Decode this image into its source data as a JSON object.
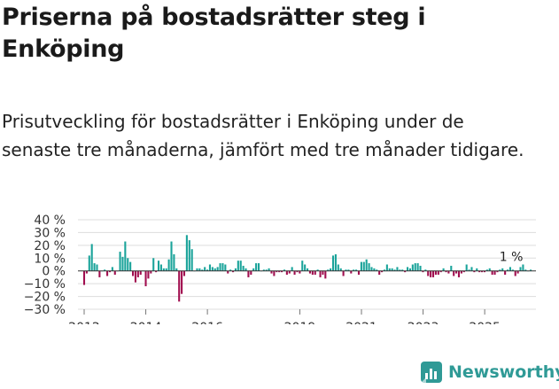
{
  "title": "Priserna på bostadsrätter steg i Enköping",
  "subtitle": "Prisutveckling för bostadsrätter i Enköping under de senaste tre månaderna, jämfört med tre månader tidigare.",
  "brand": {
    "name": "Newsworthy",
    "icon": "newsworthy-logo-icon"
  },
  "colors": {
    "positive": "#1aa39a",
    "negative": "#a10e4f",
    "grid": "#dddddd",
    "text": "#333333",
    "brand": "#2f9a96"
  },
  "chart_data": {
    "type": "bar",
    "title": "Priserna på bostadsrätter steg i Enköping",
    "xlabel": "",
    "ylabel": "",
    "ylim": [
      -30,
      40
    ],
    "yticks": [
      -30,
      -20,
      -10,
      0,
      10,
      20,
      30,
      40
    ],
    "ytick_labels": [
      "−30 %",
      "−20 %",
      "−10 %",
      "0 %",
      "10 %",
      "20 %",
      "30 %",
      "40 %"
    ],
    "xticks": [
      2012,
      2014,
      2016,
      2019,
      2021,
      2023,
      2025
    ],
    "x_start": 2012.0,
    "x_step": 0.0833,
    "grid": true,
    "annotation": {
      "label": "1 %",
      "value": 1
    },
    "values": [
      -11,
      -2,
      12,
      21,
      6,
      5,
      -5,
      0,
      1,
      -4,
      -1,
      3,
      -3,
      0,
      15,
      11,
      23,
      10,
      7,
      -4,
      -9,
      -5,
      -3,
      0,
      -12,
      -6,
      -2,
      10,
      -1,
      8,
      5,
      2,
      2,
      9,
      23,
      13,
      2,
      -24,
      -18,
      -4,
      28,
      24,
      17,
      0,
      2,
      2,
      1,
      3,
      1,
      5,
      3,
      2,
      3,
      6,
      6,
      5,
      -2,
      1,
      -1,
      2,
      8,
      8,
      4,
      2,
      -5,
      -3,
      2,
      6,
      6,
      0,
      1,
      1,
      2,
      -2,
      -4,
      -1,
      -1,
      -1,
      1,
      -3,
      -2,
      3,
      -3,
      -1,
      -2,
      8,
      5,
      2,
      -2,
      -3,
      -3,
      1,
      -5,
      -3,
      -6,
      1,
      2,
      12,
      13,
      5,
      2,
      -4,
      1,
      1,
      -2,
      1,
      1,
      -3,
      7,
      7,
      9,
      6,
      3,
      2,
      1,
      -3,
      -1,
      1,
      5,
      2,
      2,
      1,
      3,
      1,
      1,
      -1,
      3,
      2,
      5,
      6,
      6,
      4,
      -1,
      1,
      -4,
      -5,
      -5,
      -3,
      -3,
      -1,
      2,
      -1,
      -2,
      4,
      -4,
      -2,
      -5,
      -2,
      -1,
      5,
      1,
      3,
      -1,
      2,
      -1,
      -1,
      -1,
      1,
      2,
      -3,
      -3,
      -1,
      1,
      2,
      -3,
      1,
      3,
      1,
      -4,
      -2,
      3,
      5,
      1,
      0,
      1
    ]
  }
}
